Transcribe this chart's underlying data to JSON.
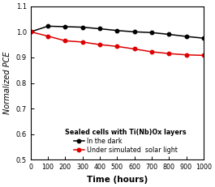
{
  "black_x": [
    0,
    100,
    200,
    300,
    400,
    500,
    600,
    700,
    800,
    900,
    1000
  ],
  "black_y": [
    1.0,
    1.022,
    1.02,
    1.018,
    1.012,
    1.005,
    1.0,
    0.997,
    0.99,
    0.982,
    0.975
  ],
  "red_x": [
    0,
    100,
    200,
    300,
    400,
    500,
    600,
    700,
    800,
    900,
    1000
  ],
  "red_y": [
    1.0,
    0.983,
    0.965,
    0.96,
    0.95,
    0.943,
    0.933,
    0.922,
    0.915,
    0.91,
    0.908
  ],
  "black_color": "#000000",
  "red_color": "#dd0000",
  "xlabel": "Time (hours)",
  "ylabel": "Normalized PCE",
  "ylim": [
    0.5,
    1.1
  ],
  "xlim": [
    0,
    1000
  ],
  "yticks": [
    0.5,
    0.6,
    0.7,
    0.8,
    0.9,
    1.0,
    1.1
  ],
  "xticks": [
    0,
    100,
    200,
    300,
    400,
    500,
    600,
    700,
    800,
    900,
    1000
  ],
  "legend_title": "Sealed cells with Ti(Nb)Ox layers",
  "legend_black": "In the dark",
  "legend_red": "Under simulated  solar light",
  "background_color": "#ffffff"
}
